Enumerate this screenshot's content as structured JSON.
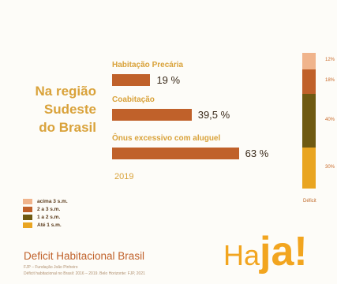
{
  "region": {
    "line1": "Na região",
    "line2": "Sudeste",
    "line3": "do Brasil"
  },
  "year": "2019",
  "chart_data": [
    {
      "type": "bar",
      "orientation": "horizontal",
      "categories": [
        "Habitação Precária",
        "Coabitação",
        "Ônus excessivo com aluguel"
      ],
      "values": [
        19,
        39.5,
        63
      ],
      "value_labels": [
        "19 %",
        "39,5 %",
        "63 %"
      ],
      "xlim": [
        0,
        100
      ],
      "bar_color": "#c0612a",
      "label_color": "#d9a23a"
    },
    {
      "type": "bar",
      "stacked": true,
      "categories": [
        "Déficit"
      ],
      "series": [
        {
          "name": "acima 3 s.m.",
          "value": 12,
          "label": "12%",
          "color": "#f0b48c"
        },
        {
          "name": "2 a 3 s.m.",
          "value": 18,
          "label": "18%",
          "color": "#c0612a"
        },
        {
          "name": "1 a 2 s.m.",
          "value": 40,
          "label": "40%",
          "color": "#6f5a12"
        },
        {
          "name": "Até 1 s.m.",
          "value": 30,
          "label": "30%",
          "color": "#e9a521"
        }
      ]
    }
  ],
  "footer": {
    "title": "Deficit Habitacional Brasil",
    "line1": "FJP – Fundação João Pinheiro",
    "line2": "Déficit habitacional no Brasil: 2016 – 2019. Belo Horizonte: FJP, 2021"
  },
  "logo": {
    "small": "Ha",
    "big": "ja!"
  }
}
